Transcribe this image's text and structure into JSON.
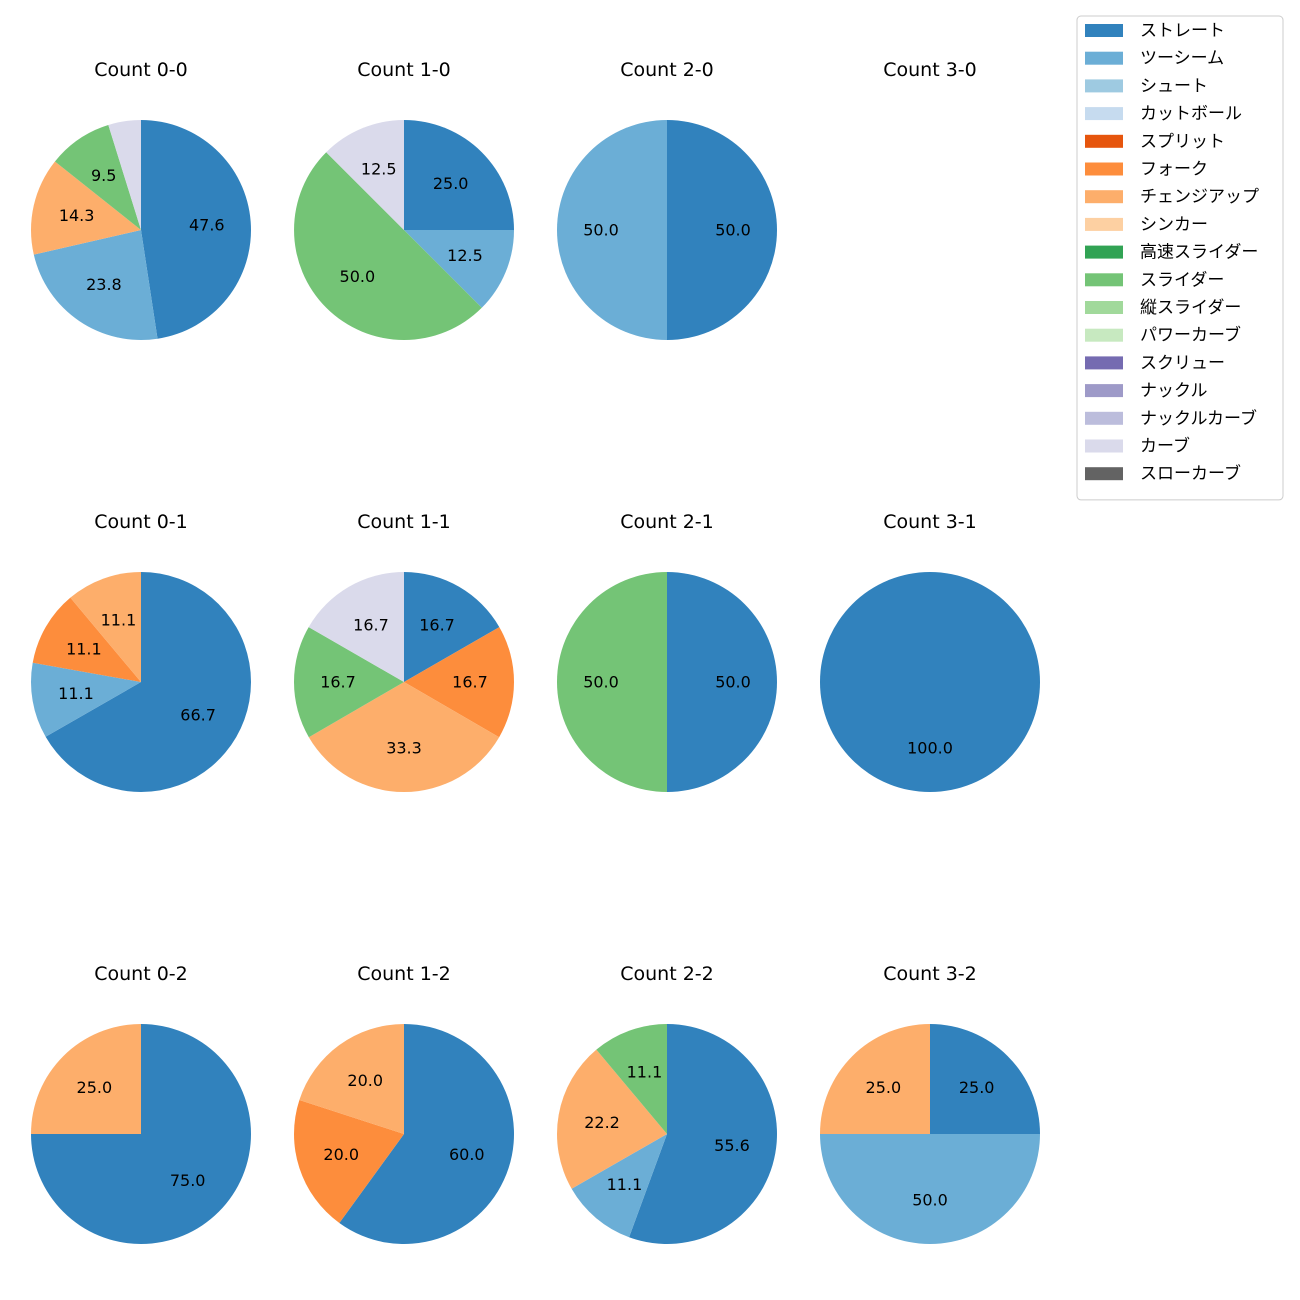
{
  "chart_data": {
    "type": "pie",
    "pitch_types": [
      {
        "name": "ストレート",
        "color": "#3182bd"
      },
      {
        "name": "ツーシーム",
        "color": "#6baed6"
      },
      {
        "name": "シュート",
        "color": "#9ecae1"
      },
      {
        "name": "カットボール",
        "color": "#c6dbef"
      },
      {
        "name": "スプリット",
        "color": "#e6550d"
      },
      {
        "name": "フォーク",
        "color": "#fd8d3c"
      },
      {
        "name": "チェンジアップ",
        "color": "#fdae6b"
      },
      {
        "name": "シンカー",
        "color": "#fdd0a2"
      },
      {
        "name": "高速スライダー",
        "color": "#31a354"
      },
      {
        "name": "スライダー",
        "color": "#74c476"
      },
      {
        "name": "縦スライダー",
        "color": "#a1d99b"
      },
      {
        "name": "パワーカーブ",
        "color": "#c7e9c0"
      },
      {
        "name": "スクリュー",
        "color": "#756bb1"
      },
      {
        "name": "ナックル",
        "color": "#9e9ac8"
      },
      {
        "name": "ナックルカーブ",
        "color": "#bcbddc"
      },
      {
        "name": "カーブ",
        "color": "#dadaeb"
      },
      {
        "name": "スローカーブ",
        "color": "#636363"
      }
    ],
    "pies": [
      {
        "title": "Count 0-0",
        "slices": [
          {
            "type": "ストレート",
            "value": 47.6,
            "label": "47.6"
          },
          {
            "type": "ツーシーム",
            "value": 23.8,
            "label": "23.8"
          },
          {
            "type": "チェンジアップ",
            "value": 14.3,
            "label": "14.3"
          },
          {
            "type": "スライダー",
            "value": 9.5,
            "label": "9.5"
          },
          {
            "type": "カーブ",
            "value": 4.8,
            "label": ""
          }
        ]
      },
      {
        "title": "Count 1-0",
        "slices": [
          {
            "type": "ストレート",
            "value": 25.0,
            "label": "25.0"
          },
          {
            "type": "ツーシーム",
            "value": 12.5,
            "label": "12.5"
          },
          {
            "type": "スライダー",
            "value": 50.0,
            "label": "50.0"
          },
          {
            "type": "カーブ",
            "value": 12.5,
            "label": "12.5"
          }
        ]
      },
      {
        "title": "Count 2-0",
        "slices": [
          {
            "type": "ストレート",
            "value": 50.0,
            "label": "50.0"
          },
          {
            "type": "ツーシーム",
            "value": 50.0,
            "label": "50.0"
          }
        ]
      },
      {
        "title": "Count 3-0",
        "slices": []
      },
      {
        "title": "Count 0-1",
        "slices": [
          {
            "type": "ストレート",
            "value": 66.7,
            "label": "66.7"
          },
          {
            "type": "ツーシーム",
            "value": 11.1,
            "label": "11.1"
          },
          {
            "type": "フォーク",
            "value": 11.1,
            "label": "11.1"
          },
          {
            "type": "チェンジアップ",
            "value": 11.1,
            "label": "11.1"
          }
        ]
      },
      {
        "title": "Count 1-1",
        "slices": [
          {
            "type": "ストレート",
            "value": 16.7,
            "label": "16.7"
          },
          {
            "type": "フォーク",
            "value": 16.7,
            "label": "16.7"
          },
          {
            "type": "チェンジアップ",
            "value": 33.3,
            "label": "33.3"
          },
          {
            "type": "スライダー",
            "value": 16.7,
            "label": "16.7"
          },
          {
            "type": "カーブ",
            "value": 16.7,
            "label": "16.7"
          }
        ]
      },
      {
        "title": "Count 2-1",
        "slices": [
          {
            "type": "ストレート",
            "value": 50.0,
            "label": "50.0"
          },
          {
            "type": "スライダー",
            "value": 50.0,
            "label": "50.0"
          }
        ]
      },
      {
        "title": "Count 3-1",
        "slices": [
          {
            "type": "ストレート",
            "value": 100.0,
            "label": "100.0"
          }
        ]
      },
      {
        "title": "Count 0-2",
        "slices": [
          {
            "type": "ストレート",
            "value": 75.0,
            "label": "75.0"
          },
          {
            "type": "チェンジアップ",
            "value": 25.0,
            "label": "25.0"
          }
        ]
      },
      {
        "title": "Count 1-2",
        "slices": [
          {
            "type": "ストレート",
            "value": 60.0,
            "label": "60.0"
          },
          {
            "type": "フォーク",
            "value": 20.0,
            "label": "20.0"
          },
          {
            "type": "チェンジアップ",
            "value": 20.0,
            "label": "20.0"
          }
        ]
      },
      {
        "title": "Count 2-2",
        "slices": [
          {
            "type": "ストレート",
            "value": 55.6,
            "label": "55.6"
          },
          {
            "type": "ツーシーム",
            "value": 11.1,
            "label": "11.1"
          },
          {
            "type": "チェンジアップ",
            "value": 22.2,
            "label": "22.2"
          },
          {
            "type": "スライダー",
            "value": 11.1,
            "label": "11.1"
          }
        ]
      },
      {
        "title": "Count 3-2",
        "slices": [
          {
            "type": "ストレート",
            "value": 25.0,
            "label": "25.0"
          },
          {
            "type": "ツーシーム",
            "value": 50.0,
            "label": "50.0"
          },
          {
            "type": "チェンジアップ",
            "value": 25.0,
            "label": "25.0"
          }
        ]
      }
    ],
    "legend_position": "top-right",
    "slice_order": "clockwise from 12 o'clock"
  }
}
